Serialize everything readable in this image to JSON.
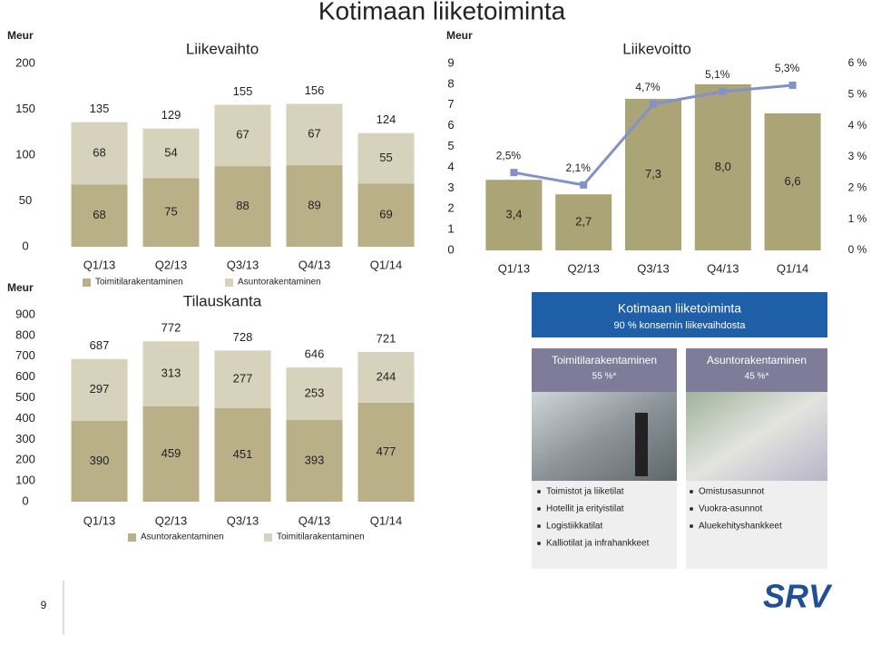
{
  "title": "Kotimaan liiketoiminta",
  "page_number": "9",
  "logo": "SRV",
  "panel": {
    "title": "Kotimaan liiketoiminta",
    "subtitle": "90 % konsernin liikevaihdosta",
    "columns": [
      {
        "title": "Toimitilarakentaminen",
        "share": "55 %*",
        "items": [
          "Toimistot ja liiketilat",
          "Hotellit ja erityistilat",
          "Logistiikkatilat",
          "Kalliotilat ja infrahankkeet"
        ]
      },
      {
        "title": "Asuntorakentaminen",
        "share": "45 %*",
        "items": [
          "Omistusasunnot",
          "Vuokra-asunnot",
          "Aluekehityshankkeet"
        ]
      }
    ]
  },
  "chart_data": [
    {
      "type": "stacked_bar",
      "title": "Liikevaihto",
      "ylabel": "Meur",
      "categories": [
        "Q1/13",
        "Q2/13",
        "Q3/13",
        "Q4/13",
        "Q1/14"
      ],
      "series": [
        {
          "name": "Toimitilarakentaminen",
          "color": "#b9b087",
          "values": [
            68,
            75,
            88,
            89,
            69
          ]
        },
        {
          "name": "Asuntorakentaminen",
          "color": "#d6d2bb",
          "values": [
            68,
            54,
            67,
            67,
            55
          ]
        }
      ],
      "totals": [
        135,
        129,
        155,
        156,
        124
      ],
      "ylim": [
        0,
        200
      ],
      "yticks": [
        0,
        50,
        100,
        150,
        200
      ]
    },
    {
      "type": "bar_line",
      "title": "Liikevoitto",
      "ylabel": "Meur",
      "categories": [
        "Q1/13",
        "Q2/13",
        "Q3/13",
        "Q4/13",
        "Q1/14"
      ],
      "series": [
        {
          "type": "bar",
          "color": "#aba477",
          "values": [
            3.4,
            2.7,
            7.3,
            8.0,
            6.6
          ],
          "value_labels": [
            "3,4",
            "2,7",
            "7,3",
            "8,0",
            "6,6"
          ]
        },
        {
          "type": "line",
          "axis": "y2",
          "color": "#8191c9",
          "values": [
            2.5,
            2.1,
            4.7,
            5.1,
            5.3
          ],
          "value_labels": [
            "2,5%",
            "2,1%",
            "4,7%",
            "5,1%",
            "5,3%"
          ]
        }
      ],
      "ylim": [
        0,
        9
      ],
      "yticks": [
        0,
        1,
        2,
        3,
        4,
        5,
        6,
        7,
        8,
        9
      ],
      "y2lim": [
        0,
        6
      ],
      "y2ticks": [
        {
          "value": 0,
          "label": "0 %"
        },
        {
          "value": 1,
          "label": "1 %"
        },
        {
          "value": 2,
          "label": "2 %"
        },
        {
          "value": 3,
          "label": "3 %"
        },
        {
          "value": 4,
          "label": "4 %"
        },
        {
          "value": 5,
          "label": "5 %"
        },
        {
          "value": 6,
          "label": "6 %"
        }
      ]
    },
    {
      "type": "stacked_bar",
      "title": "Tilauskanta",
      "ylabel": "Meur",
      "categories": [
        "Q1/13",
        "Q2/13",
        "Q3/13",
        "Q4/13",
        "Q1/14"
      ],
      "series": [
        {
          "name": "Asuntorakentaminen",
          "color": "#b9b087",
          "values": [
            390,
            459,
            451,
            393,
            477
          ]
        },
        {
          "name": "Toimitilarakentaminen",
          "color": "#d6d2bb",
          "values": [
            297,
            313,
            277,
            253,
            244
          ]
        }
      ],
      "totals": [
        687,
        772,
        728,
        646,
        721
      ],
      "ylim": [
        0,
        900
      ],
      "yticks": [
        0,
        100,
        200,
        300,
        400,
        500,
        600,
        700,
        800,
        900
      ]
    }
  ]
}
